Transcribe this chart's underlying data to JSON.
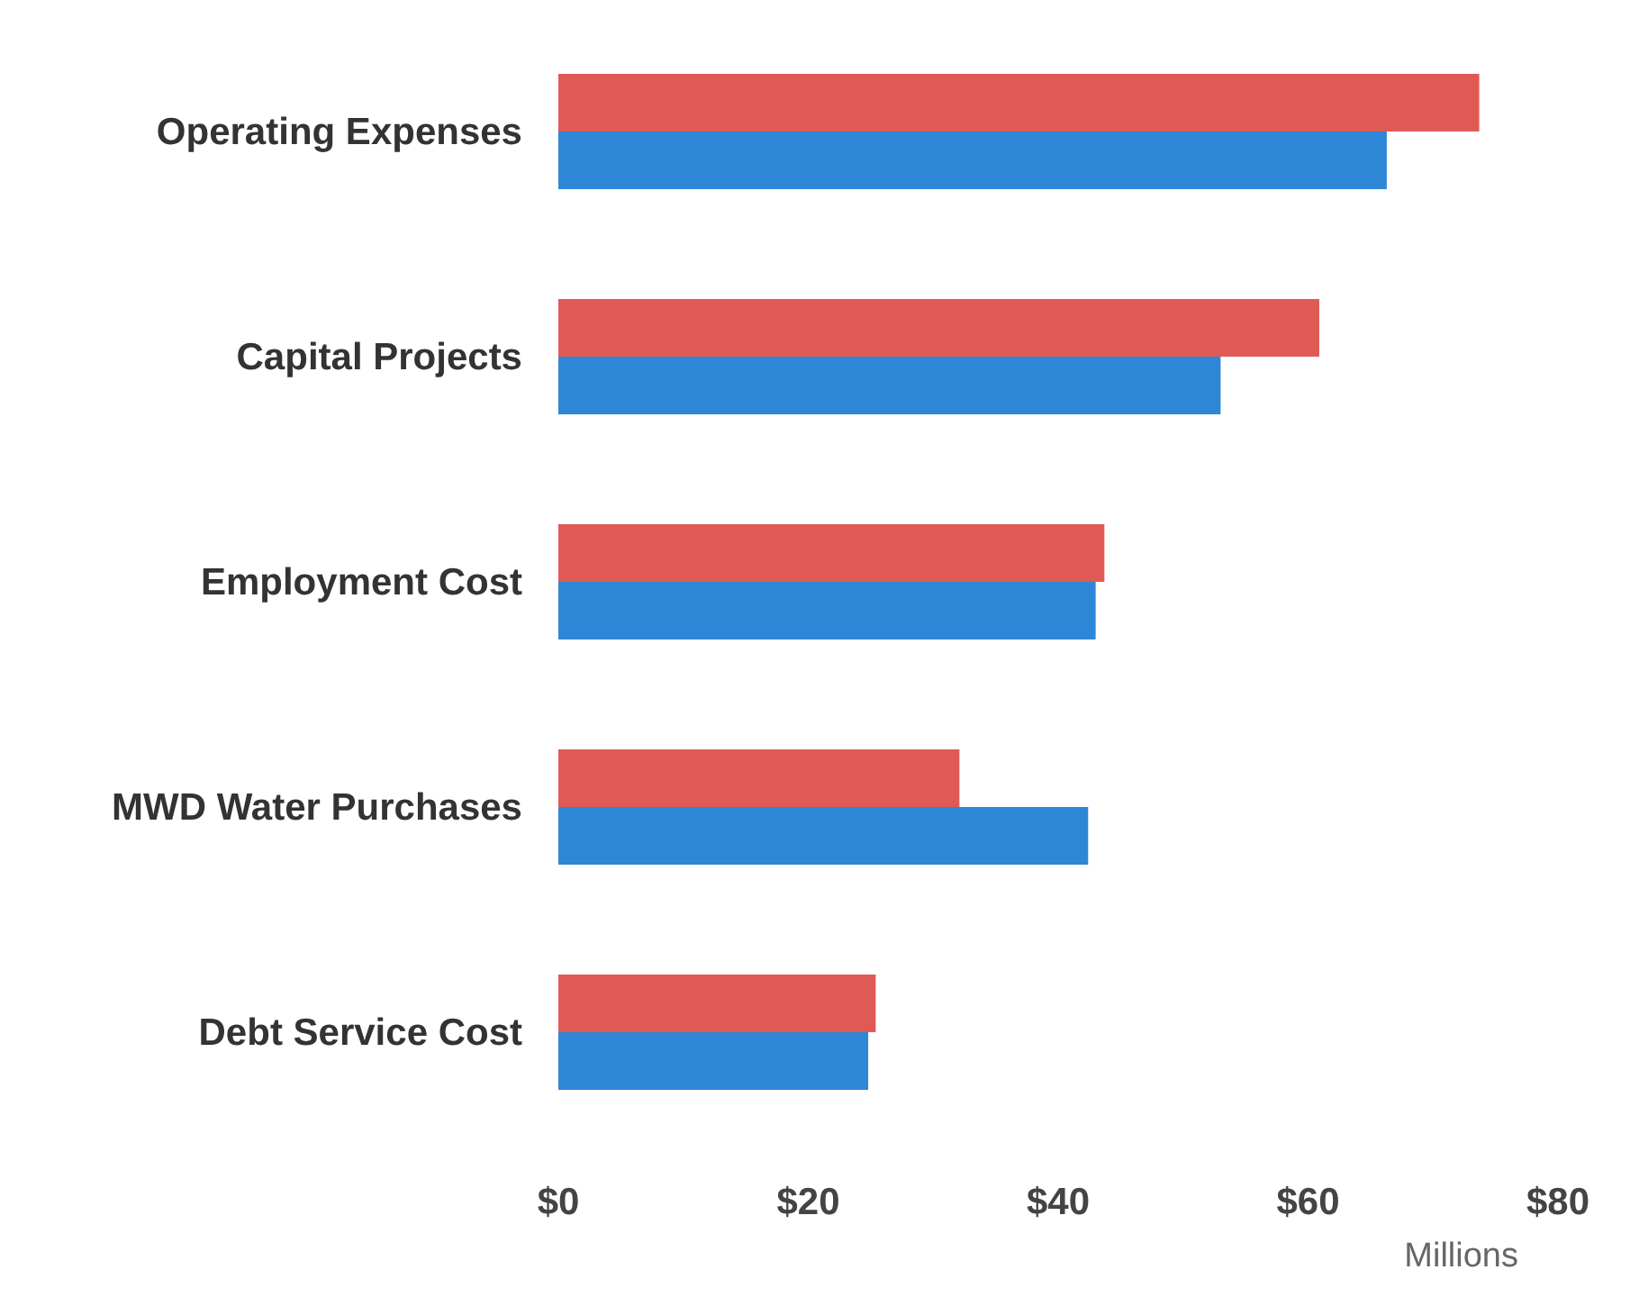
{
  "chart_data": {
    "type": "bar",
    "orientation": "horizontal",
    "categories": [
      "Operating Expenses",
      "Capital Projects",
      "Employment Cost",
      "MWD Water Purchases",
      "Debt Service Cost"
    ],
    "series": [
      {
        "color": "#e05a55",
        "values": [
          73.7,
          60.9,
          43.7,
          32.1,
          25.4
        ]
      },
      {
        "color": "#2e86d6",
        "values": [
          66.3,
          53,
          43,
          42.4,
          24.8
        ]
      }
    ],
    "xlim": [
      0,
      80
    ],
    "xticks": [
      {
        "value": 0,
        "label": "$0"
      },
      {
        "value": 20,
        "label": "$20"
      },
      {
        "value": 40,
        "label": "$40"
      },
      {
        "value": 60,
        "label": "$60"
      },
      {
        "value": 80,
        "label": "$80"
      }
    ],
    "xlabel": "Millions",
    "grid": false,
    "legend": false
  }
}
